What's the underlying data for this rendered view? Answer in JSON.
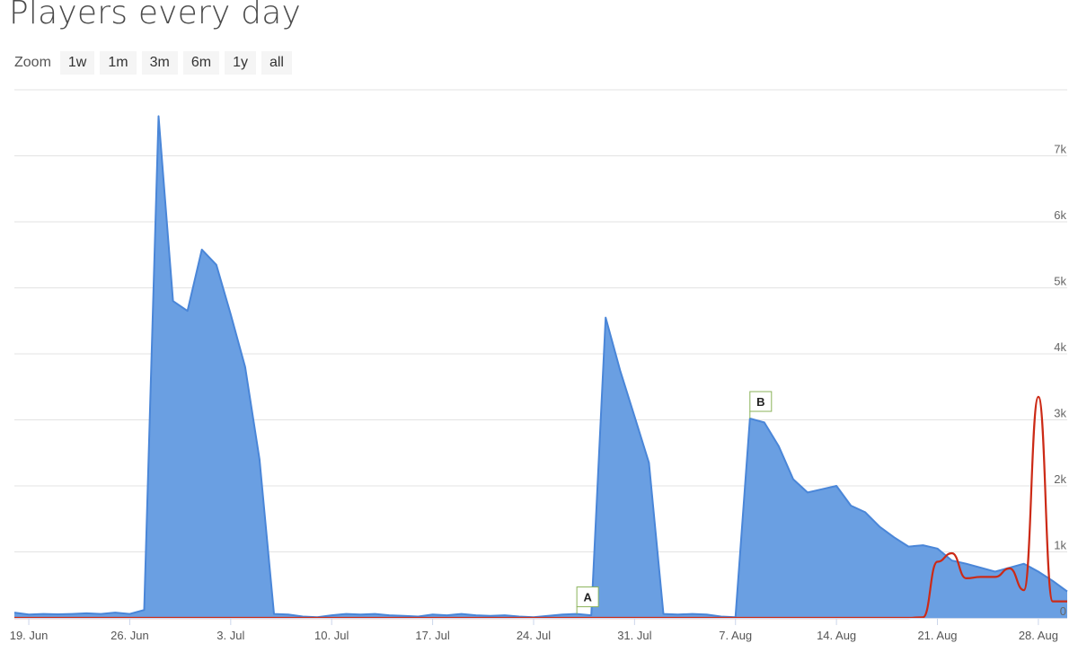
{
  "header": {
    "title": "Players every day"
  },
  "zoom": {
    "label": "Zoom",
    "buttons": [
      "1w",
      "1m",
      "3m",
      "6m",
      "1y",
      "all"
    ]
  },
  "chart_data": {
    "type": "area",
    "title": "Players every day",
    "x_unit": "day",
    "x_ticks": [
      "19. Jun",
      "26. Jun",
      "3. Jul",
      "10. Jul",
      "17. Jul",
      "24. Jul",
      "31. Jul",
      "7. Aug",
      "14. Aug",
      "21. Aug",
      "28. Aug"
    ],
    "y_ticks": [
      "0",
      "1k",
      "2k",
      "3k",
      "4k",
      "5k",
      "6k",
      "7k"
    ],
    "ylim": [
      0,
      8000
    ],
    "grid": true,
    "series": [
      {
        "color": "#4a86d8",
        "fill": "#6a9fe2",
        "style": "area",
        "points": [
          [
            "2023-06-18",
            80
          ],
          [
            "2023-06-19",
            50
          ],
          [
            "2023-06-20",
            60
          ],
          [
            "2023-06-21",
            55
          ],
          [
            "2023-06-22",
            60
          ],
          [
            "2023-06-23",
            70
          ],
          [
            "2023-06-24",
            60
          ],
          [
            "2023-06-25",
            80
          ],
          [
            "2023-06-26",
            60
          ],
          [
            "2023-06-27",
            120
          ],
          [
            "2023-06-28",
            7600
          ],
          [
            "2023-06-29",
            4800
          ],
          [
            "2023-06-30",
            4650
          ],
          [
            "2023-07-01",
            5580
          ],
          [
            "2023-07-02",
            5350
          ],
          [
            "2023-07-03",
            4600
          ],
          [
            "2023-07-04",
            3800
          ],
          [
            "2023-07-05",
            2400
          ],
          [
            "2023-07-06",
            60
          ],
          [
            "2023-07-07",
            50
          ],
          [
            "2023-07-08",
            20
          ],
          [
            "2023-07-09",
            10
          ],
          [
            "2023-07-10",
            40
          ],
          [
            "2023-07-11",
            60
          ],
          [
            "2023-07-12",
            50
          ],
          [
            "2023-07-13",
            60
          ],
          [
            "2023-07-14",
            40
          ],
          [
            "2023-07-15",
            30
          ],
          [
            "2023-07-16",
            20
          ],
          [
            "2023-07-17",
            50
          ],
          [
            "2023-07-18",
            40
          ],
          [
            "2023-07-19",
            60
          ],
          [
            "2023-07-20",
            40
          ],
          [
            "2023-07-21",
            30
          ],
          [
            "2023-07-22",
            40
          ],
          [
            "2023-07-23",
            20
          ],
          [
            "2023-07-24",
            10
          ],
          [
            "2023-07-25",
            30
          ],
          [
            "2023-07-26",
            50
          ],
          [
            "2023-07-27",
            60
          ],
          [
            "2023-07-28",
            40
          ],
          [
            "2023-07-29",
            4550
          ],
          [
            "2023-07-30",
            3750
          ],
          [
            "2023-07-31",
            3050
          ],
          [
            "2023-08-01",
            2350
          ],
          [
            "2023-08-02",
            60
          ],
          [
            "2023-08-03",
            50
          ],
          [
            "2023-08-04",
            60
          ],
          [
            "2023-08-05",
            50
          ],
          [
            "2023-08-06",
            20
          ],
          [
            "2023-08-07",
            10
          ],
          [
            "2023-08-08",
            3020
          ],
          [
            "2023-08-09",
            2960
          ],
          [
            "2023-08-10",
            2600
          ],
          [
            "2023-08-11",
            2100
          ],
          [
            "2023-08-12",
            1900
          ],
          [
            "2023-08-13",
            1950
          ],
          [
            "2023-08-14",
            2000
          ],
          [
            "2023-08-15",
            1700
          ],
          [
            "2023-08-16",
            1600
          ],
          [
            "2023-08-17",
            1380
          ],
          [
            "2023-08-18",
            1220
          ],
          [
            "2023-08-19",
            1080
          ],
          [
            "2023-08-20",
            1100
          ],
          [
            "2023-08-21",
            1050
          ],
          [
            "2023-08-22",
            870
          ],
          [
            "2023-08-23",
            820
          ],
          [
            "2023-08-24",
            760
          ],
          [
            "2023-08-25",
            700
          ],
          [
            "2023-08-26",
            760
          ],
          [
            "2023-08-27",
            820
          ],
          [
            "2023-08-28",
            700
          ],
          [
            "2023-08-29",
            560
          ],
          [
            "2023-08-30",
            400
          ]
        ]
      },
      {
        "color": "#cc2a16",
        "style": "line",
        "points": [
          [
            "2023-06-18",
            0
          ],
          [
            "2023-08-19",
            0
          ],
          [
            "2023-08-20",
            10
          ],
          [
            "2023-08-21",
            850
          ],
          [
            "2023-08-22",
            980
          ],
          [
            "2023-08-23",
            600
          ],
          [
            "2023-08-24",
            620
          ],
          [
            "2023-08-25",
            620
          ],
          [
            "2023-08-26",
            750
          ],
          [
            "2023-08-27",
            420
          ],
          [
            "2023-08-28",
            3350
          ],
          [
            "2023-08-29",
            250
          ],
          [
            "2023-08-30",
            250
          ]
        ]
      }
    ],
    "flags": [
      {
        "label": "A",
        "date": "2023-07-27"
      },
      {
        "label": "B",
        "date": "2023-08-08"
      }
    ]
  }
}
